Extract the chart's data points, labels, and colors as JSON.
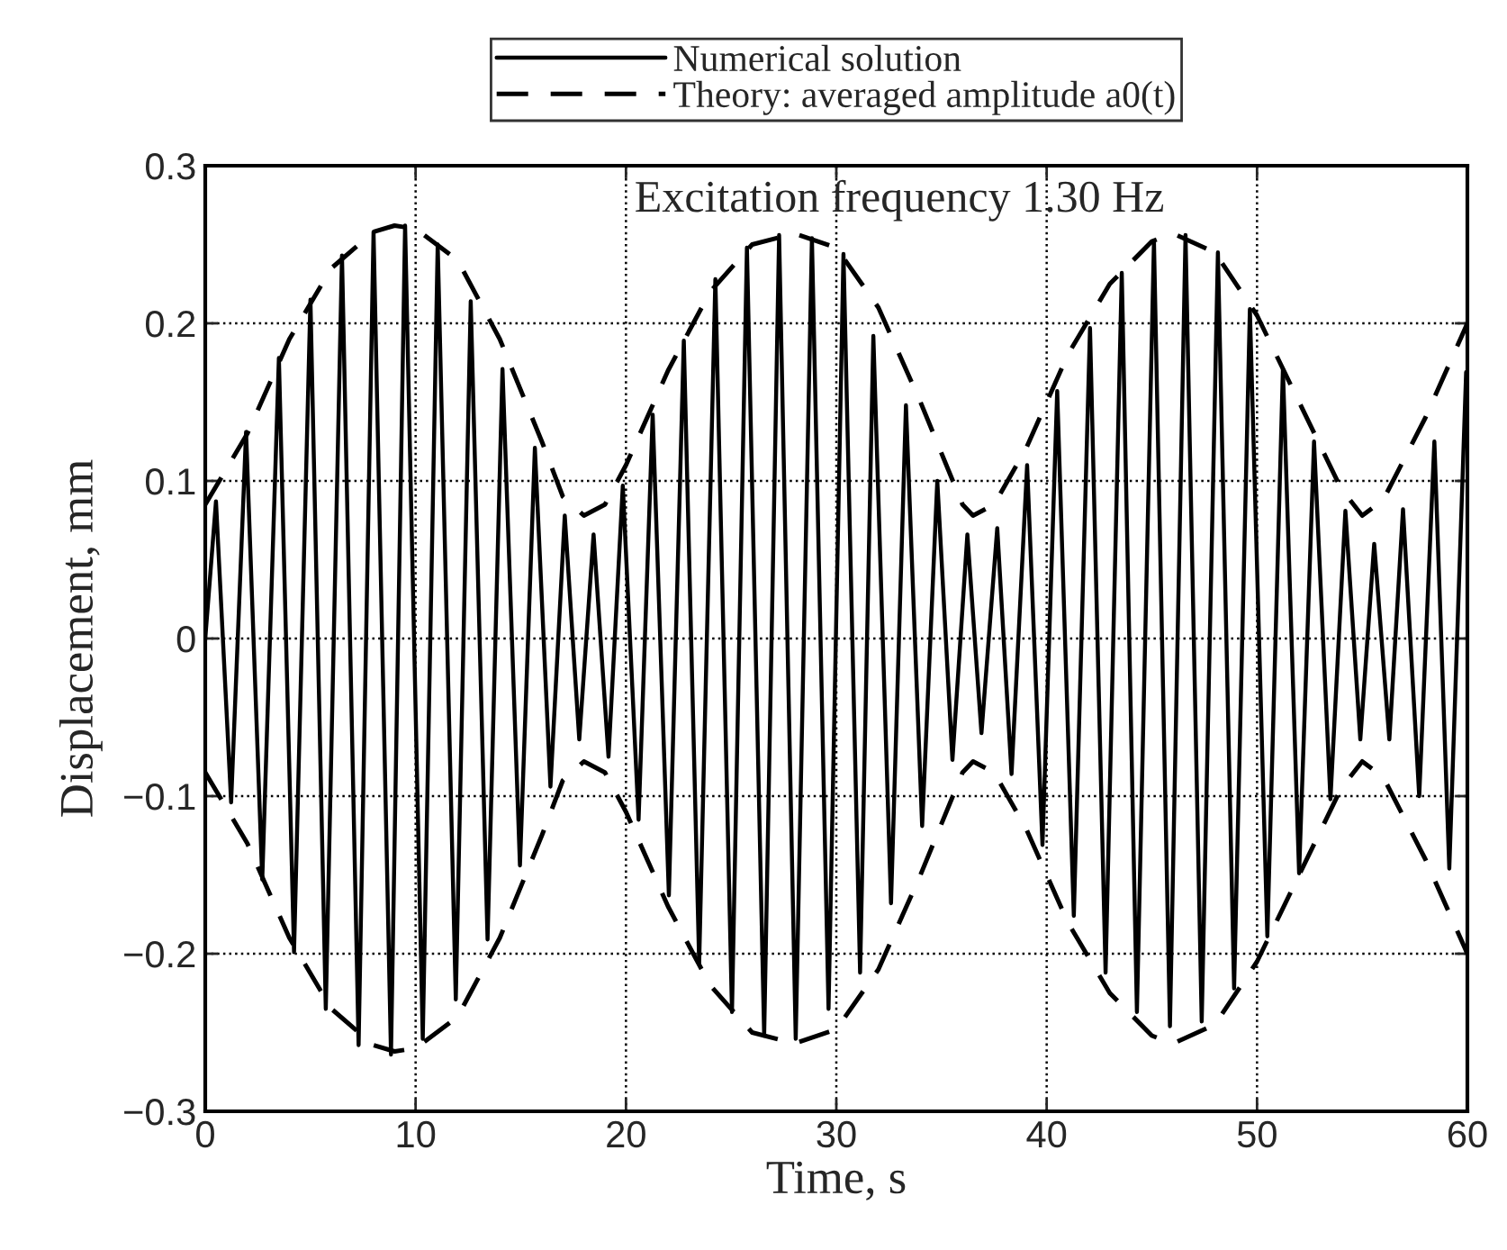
{
  "chart_data": {
    "type": "line",
    "xlabel": "Time, s",
    "ylabel": "Displacement, mm",
    "annotations": [
      "Excitation frequency 1.30 Hz"
    ],
    "xlim": [
      0,
      60
    ],
    "xticks": [
      0,
      10,
      20,
      30,
      40,
      50,
      60
    ],
    "ylim": [
      -0.3,
      0.3
    ],
    "yticks": [
      {
        "value": -0.3,
        "label": "−0.3"
      },
      {
        "value": -0.2,
        "label": "−0.2"
      },
      {
        "value": -0.1,
        "label": "−0.1"
      },
      0,
      0.1,
      0.2,
      0.3
    ],
    "grid": true,
    "legend": "top",
    "series": [
      {
        "name": "Numerical solution",
        "color": "#000000",
        "line_style": "solid",
        "x": [
          0,
          0.51,
          1.23,
          1.94,
          2.71,
          3.5,
          4.22,
          5.0,
          5.73,
          6.5,
          7.29,
          8.0,
          8.83,
          9.5,
          10.34,
          11.05,
          11.91,
          12.62,
          13.42,
          14.13,
          14.96,
          15.67,
          16.41,
          17.09,
          17.78,
          18.46,
          19.17,
          19.85,
          20.6,
          21.27,
          22.04,
          22.75,
          23.48,
          24.25,
          25.04,
          25.75,
          26.57,
          27.28,
          28.07,
          28.84,
          29.63,
          30.34,
          31.13,
          31.76,
          32.6,
          33.31,
          34.08,
          34.8,
          35.52,
          36.23,
          36.9,
          37.65,
          38.33,
          39.07,
          39.8,
          40.5,
          41.29,
          42.06,
          42.8,
          43.57,
          44.29,
          45.1,
          45.86,
          46.6,
          47.37,
          48.14,
          48.91,
          49.66,
          50.49,
          51.23,
          52.0,
          52.71,
          53.49,
          54.2,
          54.91,
          55.57,
          56.29,
          56.94,
          57.71,
          58.43,
          59.14,
          59.94,
          60
        ],
        "values": [
          0,
          0.087,
          -0.104,
          0.131,
          -0.153,
          0.178,
          -0.199,
          0.215,
          -0.235,
          0.243,
          -0.258,
          0.258,
          -0.264,
          0.262,
          -0.254,
          0.25,
          -0.229,
          0.214,
          -0.191,
          0.171,
          -0.144,
          0.121,
          -0.094,
          0.078,
          -0.064,
          0.066,
          -0.075,
          0.097,
          -0.115,
          0.142,
          -0.163,
          0.189,
          -0.206,
          0.228,
          -0.237,
          0.248,
          -0.252,
          0.256,
          -0.254,
          0.254,
          -0.235,
          0.244,
          -0.212,
          0.192,
          -0.168,
          0.148,
          -0.119,
          0.1,
          -0.077,
          0.066,
          -0.06,
          0.07,
          -0.086,
          0.11,
          -0.131,
          0.157,
          -0.176,
          0.197,
          -0.212,
          0.232,
          -0.237,
          0.252,
          -0.246,
          0.256,
          -0.243,
          0.245,
          -0.222,
          0.209,
          -0.189,
          0.171,
          -0.149,
          0.125,
          -0.102,
          0.081,
          -0.064,
          0.06,
          -0.064,
          0.082,
          -0.1,
          0.125,
          -0.146,
          0.169,
          0.15
        ]
      },
      {
        "name": "Theory: averaged amplitude a0(t)",
        "color": "#000000",
        "line_style": "dashed",
        "x": [
          0,
          2,
          4,
          6,
          8,
          9,
          10,
          12,
          14,
          16,
          17,
          18,
          19,
          20,
          22,
          24,
          26,
          28,
          30,
          32,
          34,
          36,
          36.5,
          37.5,
          39,
          41,
          43,
          45,
          46,
          48,
          50,
          52,
          54,
          55,
          56,
          58,
          60
        ],
        "values": [
          0.085,
          0.13,
          0.19,
          0.235,
          0.258,
          0.262,
          0.26,
          0.24,
          0.19,
          0.125,
          0.09,
          0.078,
          0.085,
          0.11,
          0.17,
          0.22,
          0.25,
          0.257,
          0.248,
          0.21,
          0.15,
          0.085,
          0.078,
          0.085,
          0.12,
          0.18,
          0.225,
          0.252,
          0.257,
          0.245,
          0.205,
          0.15,
          0.095,
          0.078,
          0.088,
          0.14,
          0.2
        ]
      },
      {
        "color": "#000000",
        "line_style": "dashed",
        "x": [
          0,
          2,
          4,
          6,
          8,
          9,
          10,
          12,
          14,
          16,
          17,
          18,
          19,
          20,
          22,
          24,
          26,
          28,
          30,
          32,
          34,
          36,
          36.5,
          37.5,
          39,
          41,
          43,
          45,
          46,
          48,
          50,
          52,
          54,
          55,
          56,
          58,
          60
        ],
        "values": [
          -0.085,
          -0.13,
          -0.19,
          -0.235,
          -0.258,
          -0.262,
          -0.26,
          -0.24,
          -0.19,
          -0.125,
          -0.09,
          -0.078,
          -0.085,
          -0.11,
          -0.17,
          -0.22,
          -0.25,
          -0.257,
          -0.248,
          -0.21,
          -0.15,
          -0.085,
          -0.078,
          -0.085,
          -0.12,
          -0.18,
          -0.225,
          -0.252,
          -0.257,
          -0.245,
          -0.205,
          -0.15,
          -0.095,
          -0.078,
          -0.088,
          -0.14,
          -0.2
        ]
      }
    ]
  }
}
